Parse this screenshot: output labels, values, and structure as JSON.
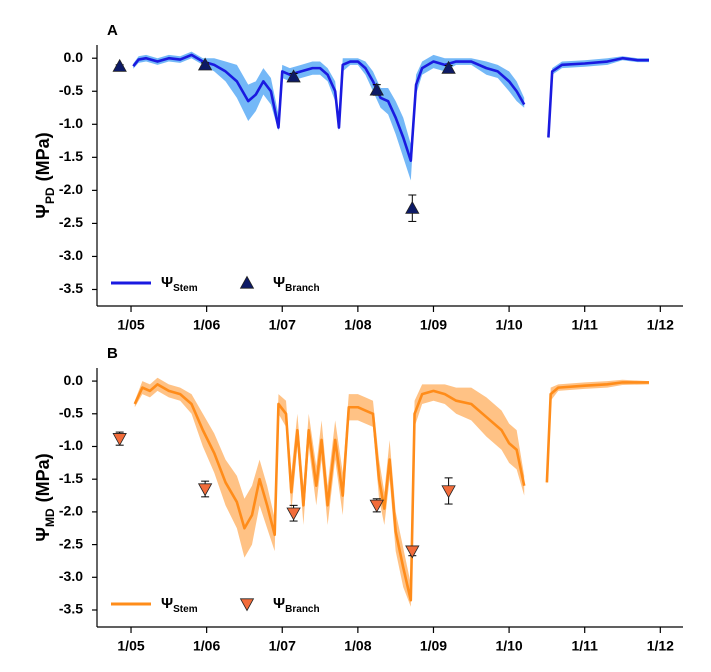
{
  "chart_data": [
    {
      "type": "line",
      "label": "A",
      "ylabel": "Ψ",
      "ylabel_sub": "PD",
      "ylabel_unit": "(MPa)",
      "xlim": [
        2004.55,
        2012.3
      ],
      "xticks": [
        {
          "value": 2005,
          "label": "1/05"
        },
        {
          "value": 2006,
          "label": "1/06"
        },
        {
          "value": 2007,
          "label": "1/07"
        },
        {
          "value": 2008,
          "label": "1/08"
        },
        {
          "value": 2009,
          "label": "1/09"
        },
        {
          "value": 2010,
          "label": "1/10"
        },
        {
          "value": 2011,
          "label": "1/11"
        },
        {
          "value": 2012,
          "label": "1/12"
        }
      ],
      "ylim": [
        -3.75,
        0.2
      ],
      "yticks": [
        {
          "value": 0,
          "label": "0.0"
        },
        -0.5,
        {
          "value": -1,
          "label": "-1.0"
        },
        -1.5,
        {
          "value": -2,
          "label": "-2.0"
        },
        -2.5,
        {
          "value": -3,
          "label": "-3.0"
        },
        -3.5
      ],
      "series": [
        {
          "name": "Ψ",
          "name_sub": "Stem",
          "color": "#1a1ae0",
          "band_color": "#74b8f7",
          "x": [
            2005.03,
            2005.1,
            2005.2,
            2005.35,
            2005.5,
            2005.65,
            2005.8,
            2005.95,
            2006.1,
            2006.25,
            2006.4,
            2006.55,
            2006.65,
            2006.75,
            2006.85,
            2006.95,
            2007.0,
            2007.1,
            2007.25,
            2007.4,
            2007.5,
            2007.6,
            2007.7,
            2007.75,
            2007.8,
            2007.9,
            2008.0,
            2008.1,
            2008.2,
            2008.3,
            2008.4,
            2008.5,
            2008.6,
            2008.7,
            2008.77,
            2008.85,
            2009.0,
            2009.15,
            2009.3,
            2009.5,
            2009.7,
            2009.85,
            2010.0,
            2010.1,
            2010.2,
            2010.35,
            2010.52,
            2010.57,
            2010.7,
            2011.0,
            2011.3,
            2011.5,
            2011.7,
            2011.85
          ],
          "values": [
            -0.12,
            -0.02,
            0.0,
            -0.05,
            0.0,
            -0.02,
            0.05,
            -0.05,
            -0.1,
            -0.2,
            -0.35,
            -0.65,
            -0.55,
            -0.35,
            -0.5,
            -1.05,
            -0.2,
            -0.25,
            -0.2,
            -0.15,
            -0.15,
            -0.25,
            -0.5,
            -1.05,
            -0.1,
            -0.05,
            -0.05,
            -0.15,
            -0.35,
            -0.6,
            -0.65,
            -0.9,
            -1.2,
            -1.55,
            -0.4,
            -0.15,
            -0.05,
            -0.1,
            -0.05,
            -0.05,
            -0.15,
            -0.2,
            -0.35,
            -0.5,
            -0.7,
            null,
            -1.2,
            -0.2,
            -0.1,
            -0.08,
            -0.05,
            0.0,
            -0.03,
            -0.03
          ],
          "upper": [
            -0.08,
            0.03,
            0.05,
            0.0,
            0.05,
            0.03,
            0.1,
            0.0,
            0.0,
            -0.05,
            -0.1,
            -0.4,
            -0.35,
            -0.15,
            -0.3,
            -0.85,
            -0.1,
            -0.15,
            -0.1,
            -0.05,
            -0.05,
            -0.15,
            -0.35,
            -0.9,
            0.0,
            0.0,
            0.0,
            -0.05,
            -0.2,
            -0.45,
            -0.45,
            -0.65,
            -0.9,
            -1.3,
            -0.25,
            -0.05,
            0.05,
            0.0,
            0.0,
            0.0,
            -0.05,
            -0.1,
            -0.2,
            -0.35,
            -0.6,
            null,
            -1.15,
            -0.15,
            -0.05,
            -0.03,
            0.0,
            0.03,
            0.0,
            0.0
          ],
          "lower": [
            -0.16,
            -0.07,
            -0.05,
            -0.1,
            -0.05,
            -0.07,
            0.0,
            -0.1,
            -0.2,
            -0.35,
            -0.6,
            -0.95,
            -0.8,
            -0.55,
            -0.7,
            -1.1,
            -0.3,
            -0.35,
            -0.3,
            -0.25,
            -0.25,
            -0.35,
            -0.65,
            -1.1,
            -0.2,
            -0.1,
            -0.1,
            -0.25,
            -0.5,
            -0.75,
            -0.85,
            -1.15,
            -1.5,
            -1.85,
            -0.55,
            -0.25,
            -0.15,
            -0.2,
            -0.1,
            -0.1,
            -0.25,
            -0.3,
            -0.5,
            -0.65,
            -0.75,
            null,
            -1.25,
            -0.25,
            -0.15,
            -0.13,
            -0.1,
            -0.03,
            -0.06,
            -0.06
          ]
        },
        {
          "name": "Ψ",
          "name_sub": "Branch",
          "color": "#0d1a66",
          "marker": "triangle-up",
          "x": [
            2004.85,
            2005.98,
            2007.15,
            2008.25,
            2008.72,
            2009.2
          ],
          "values": [
            -0.12,
            -0.1,
            -0.28,
            -0.48,
            -2.27,
            -0.15
          ],
          "errors": [
            0.02,
            0.03,
            0.05,
            0.08,
            0.2,
            0.04
          ]
        }
      ]
    },
    {
      "type": "line",
      "label": "B",
      "ylabel": "Ψ",
      "ylabel_sub": "MD",
      "ylabel_unit": "(MPa)",
      "xlim": [
        2004.55,
        2012.3
      ],
      "xticks": [
        {
          "value": 2005,
          "label": "1/05"
        },
        {
          "value": 2006,
          "label": "1/06"
        },
        {
          "value": 2007,
          "label": "1/07"
        },
        {
          "value": 2008,
          "label": "1/08"
        },
        {
          "value": 2009,
          "label": "1/09"
        },
        {
          "value": 2010,
          "label": "1/10"
        },
        {
          "value": 2011,
          "label": "1/11"
        },
        {
          "value": 2012,
          "label": "1/12"
        }
      ],
      "ylim": [
        -3.76,
        0.2
      ],
      "yticks": [
        {
          "value": 0,
          "label": "0.0"
        },
        -0.5,
        {
          "value": -1,
          "label": "-1.0"
        },
        -1.5,
        {
          "value": -2,
          "label": "-2.0"
        },
        -2.5,
        {
          "value": -3,
          "label": "-3.0"
        },
        -3.5
      ],
      "series": [
        {
          "name": "Ψ",
          "name_sub": "Stem",
          "color": "#ff8c1a",
          "band_color": "#ffc285",
          "x": [
            2005.05,
            2005.15,
            2005.25,
            2005.35,
            2005.5,
            2005.65,
            2005.8,
            2005.95,
            2006.1,
            2006.25,
            2006.4,
            2006.5,
            2006.6,
            2006.7,
            2006.8,
            2006.9,
            2006.95,
            2007.05,
            2007.12,
            2007.2,
            2007.28,
            2007.35,
            2007.45,
            2007.52,
            2007.6,
            2007.7,
            2007.8,
            2007.88,
            2008.0,
            2008.1,
            2008.2,
            2008.28,
            2008.35,
            2008.42,
            2008.5,
            2008.6,
            2008.7,
            2008.75,
            2008.85,
            2009.0,
            2009.15,
            2009.3,
            2009.5,
            2009.7,
            2009.9,
            2010.0,
            2010.1,
            2010.2,
            2010.35,
            2010.5,
            2010.55,
            2010.65,
            2011.0,
            2011.3,
            2011.5,
            2011.85
          ],
          "values": [
            -0.35,
            -0.1,
            -0.15,
            -0.05,
            -0.15,
            -0.2,
            -0.35,
            -0.75,
            -1.1,
            -1.55,
            -1.85,
            -2.25,
            -2.05,
            -1.5,
            -1.9,
            -2.35,
            -0.35,
            -0.5,
            -1.7,
            -0.75,
            -1.9,
            -0.75,
            -1.6,
            -0.9,
            -1.9,
            -0.9,
            -1.75,
            -0.4,
            -0.4,
            -0.45,
            -0.5,
            -1.5,
            -1.95,
            -1.2,
            -2.3,
            -2.85,
            -3.35,
            -0.5,
            -0.2,
            -0.15,
            -0.2,
            -0.3,
            -0.35,
            -0.55,
            -0.75,
            -0.95,
            -1.05,
            -1.6,
            null,
            -1.55,
            -0.2,
            -0.1,
            -0.07,
            -0.05,
            -0.02,
            -0.02
          ],
          "upper": [
            -0.3,
            0.0,
            -0.05,
            0.05,
            -0.05,
            -0.1,
            -0.2,
            -0.5,
            -0.8,
            -1.2,
            -1.45,
            -1.8,
            -1.6,
            -1.2,
            -1.6,
            -2.1,
            -0.2,
            -0.3,
            -1.4,
            -0.5,
            -1.6,
            -0.5,
            -1.3,
            -0.6,
            -1.6,
            -0.6,
            -1.4,
            -0.2,
            -0.2,
            -0.25,
            -0.3,
            -1.2,
            -1.7,
            -0.9,
            -2.0,
            -2.55,
            -3.1,
            -0.3,
            -0.05,
            -0.05,
            -0.05,
            -0.1,
            -0.1,
            -0.25,
            -0.45,
            -0.65,
            -0.75,
            -1.45,
            null,
            -1.5,
            -0.1,
            -0.05,
            -0.02,
            0.0,
            0.02,
            0.0
          ],
          "lower": [
            -0.4,
            -0.2,
            -0.25,
            -0.15,
            -0.25,
            -0.3,
            -0.5,
            -1.0,
            -1.4,
            -1.9,
            -2.25,
            -2.7,
            -2.5,
            -1.9,
            -2.25,
            -2.6,
            -0.5,
            -0.7,
            -2.0,
            -1.0,
            -2.2,
            -1.0,
            -1.9,
            -1.2,
            -2.2,
            -1.2,
            -2.05,
            -0.6,
            -0.6,
            -0.65,
            -0.7,
            -1.8,
            -2.2,
            -1.5,
            -2.6,
            -3.15,
            -3.45,
            -0.7,
            -0.35,
            -0.3,
            -0.35,
            -0.5,
            -0.6,
            -0.85,
            -1.05,
            -1.25,
            -1.35,
            -1.75,
            null,
            -1.6,
            -0.3,
            -0.15,
            -0.12,
            -0.1,
            -0.06,
            -0.05
          ]
        },
        {
          "name": "Ψ",
          "name_sub": "Branch",
          "color": "#f26c3a",
          "marker": "triangle-down",
          "x": [
            2004.85,
            2005.98,
            2007.15,
            2008.25,
            2008.72,
            2009.2
          ],
          "values": [
            -0.88,
            -1.65,
            -2.02,
            -1.9,
            -2.6,
            -1.68
          ],
          "errors": [
            0.1,
            0.12,
            0.12,
            0.1,
            0.07,
            0.2
          ]
        }
      ]
    }
  ]
}
